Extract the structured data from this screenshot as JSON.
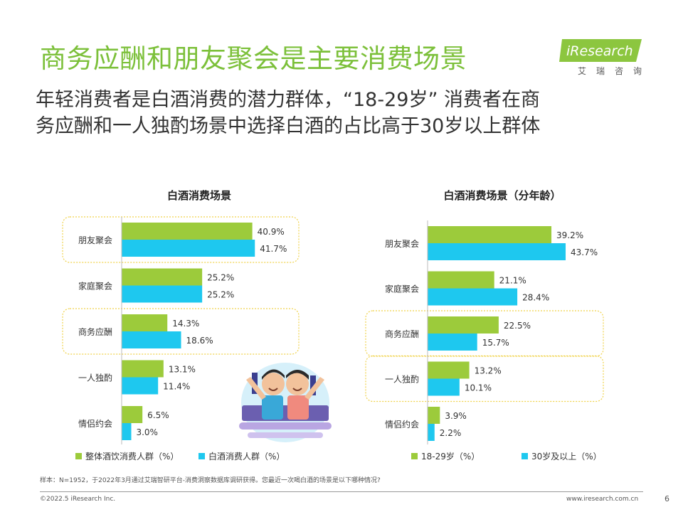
{
  "title": "商务应酬和朋友聚会是主要消费场景",
  "subtitle_line1": "年轻消费者是白酒消费的潜力群体，“18-29岁” 消费者在商",
  "subtitle_line2": "务应酬和一人独酌场景中选择白酒的占比高于30岁以上群体",
  "logo": {
    "brand": "iResearch",
    "cn": "艾瑞咨询"
  },
  "colors": {
    "title": "#7cc03a",
    "green": "#9ccb3b",
    "blue": "#1ec8ef",
    "highlight": "#f0d24a"
  },
  "chart_data": [
    {
      "type": "bar",
      "orientation": "horizontal",
      "title": "白酒消费场景",
      "categories": [
        "朋友聚会",
        "家庭聚会",
        "商务应酬",
        "一人独酌",
        "情侣约会"
      ],
      "series": [
        {
          "name": "整体酒饮消费人群（%）",
          "color": "#9ccb3b",
          "values": [
            40.9,
            25.2,
            14.3,
            13.1,
            6.5
          ],
          "labels": [
            "40.9%",
            "25.2%",
            "14.3%",
            "13.1%",
            "6.5%"
          ]
        },
        {
          "name": "白酒消费人群（%）",
          "color": "#1ec8ef",
          "values": [
            41.7,
            25.2,
            18.6,
            11.4,
            3.0
          ],
          "labels": [
            "41.7%",
            "25.2%",
            "18.6%",
            "11.4%",
            "3.0%"
          ]
        }
      ],
      "highlighted": [
        "朋友聚会",
        "商务应酬"
      ],
      "xlim": [
        0,
        45
      ]
    },
    {
      "type": "bar",
      "orientation": "horizontal",
      "title": "白酒消费场景（分年龄）",
      "categories": [
        "朋友聚会",
        "家庭聚会",
        "商务应酬",
        "一人独酌",
        "情侣约会"
      ],
      "series": [
        {
          "name": "18-29岁（%）",
          "color": "#9ccb3b",
          "values": [
            39.2,
            21.1,
            22.5,
            13.2,
            3.9
          ],
          "labels": [
            "39.2%",
            "21.1%",
            "22.5%",
            "13.2%",
            "3.9%"
          ]
        },
        {
          "name": "30岁及以上（%）",
          "color": "#1ec8ef",
          "values": [
            43.7,
            28.4,
            15.7,
            10.1,
            2.2
          ],
          "labels": [
            "43.7%",
            "28.4%",
            "15.7%",
            "10.1%",
            "2.2%"
          ]
        }
      ],
      "highlighted": [
        "商务应酬",
        "一人独酌"
      ],
      "xlim": [
        0,
        45
      ]
    }
  ],
  "footnote": "样本：N=1952，于2022年3月通过艾瑞智研平台-消费洞察数据库调研获得。您最近一次喝白酒的场景是以下哪种情况?",
  "copyright": "©2022.5 iResearch Inc.",
  "website": "www.iresearch.com.cn",
  "page_number": "6"
}
